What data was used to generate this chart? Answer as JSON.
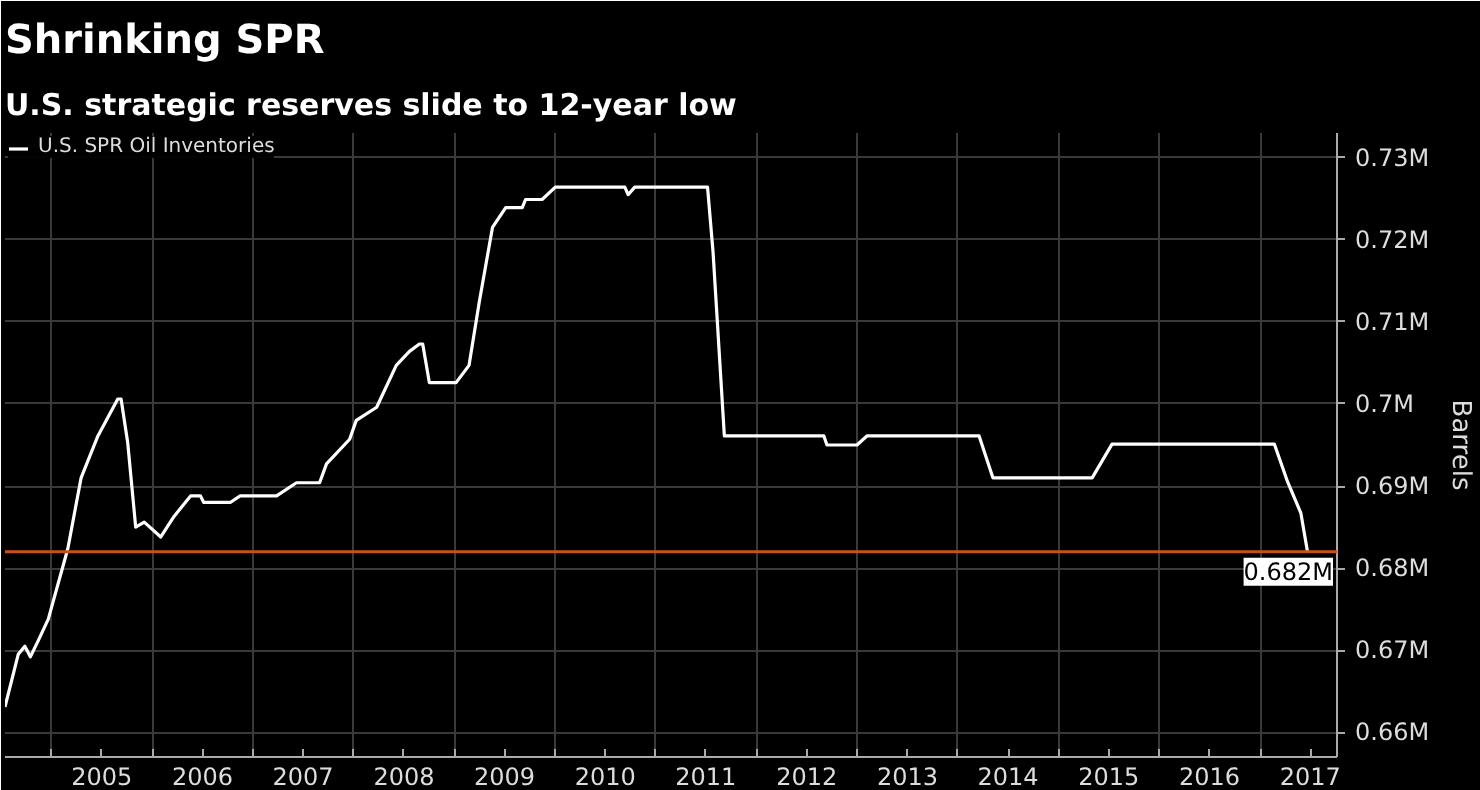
{
  "chart_data": {
    "type": "line",
    "title": "Shrinking SPR",
    "subtitle": "U.S. strategic reserves slide to 12-year low",
    "ylabel": "Barrels",
    "x": [
      "2004-07-16",
      "2004-09-02",
      "2004-09-26",
      "2004-10-16",
      "2004-11-14",
      "2004-12-20",
      "2005-03-01",
      "2005-04-18",
      "2005-06-18",
      "2005-08-29",
      "2005-09-10",
      "2005-10-04",
      "2005-11-02",
      "2005-12-03",
      "2006-02-01",
      "2006-03-21",
      "2006-05-20",
      "2006-06-25",
      "2006-07-07",
      "2006-10-11",
      "2006-11-16",
      "2007-03-28",
      "2007-06-08",
      "2007-08-31",
      "2007-09-25",
      "2007-12-18",
      "2008-01-11",
      "2008-03-25",
      "2008-06-04",
      "2008-07-22",
      "2008-08-27",
      "2008-09-08",
      "2008-10-02",
      "2009-01-07",
      "2009-02-23",
      "2009-04-01",
      "2009-05-19",
      "2009-07-06",
      "2009-09-04",
      "2009-09-16",
      "2009-11-15",
      "2010-01-02",
      "2010-09-11",
      "2010-09-23",
      "2010-10-17",
      "2011-07-08",
      "2011-07-28",
      "2011-09-07",
      "2011-11-05",
      "2012-09-02",
      "2012-09-13",
      "2012-12-31",
      "2013-02-05",
      "2014-03-19",
      "2014-05-08",
      "2015-05-03",
      "2015-07-14",
      "2017-02-22",
      "2017-04-11",
      "2017-05-29",
      "2017-06-22"
    ],
    "series": [
      {
        "name": "U.S. SPR Oil Inventories",
        "color": "#ffffff",
        "values": [
          0.6631,
          0.6695,
          0.6705,
          0.6692,
          0.6712,
          0.6738,
          0.6824,
          0.691,
          0.6961,
          0.7006,
          0.7006,
          0.6953,
          0.685,
          0.6856,
          0.6838,
          0.6863,
          0.6888,
          0.6888,
          0.688,
          0.688,
          0.6888,
          0.6888,
          0.6904,
          0.6904,
          0.6927,
          0.6957,
          0.698,
          0.6996,
          0.7047,
          0.7064,
          0.7073,
          0.7073,
          0.7026,
          0.7026,
          0.7047,
          0.7124,
          0.7215,
          0.7239,
          0.7239,
          0.7249,
          0.7249,
          0.7264,
          0.7264,
          0.7255,
          0.7264,
          0.7264,
          0.7185,
          0.6961,
          0.6961,
          0.6961,
          0.695,
          0.695,
          0.6961,
          0.6961,
          0.691,
          0.691,
          0.6951,
          0.6951,
          0.6905,
          0.6867,
          0.682
        ]
      }
    ],
    "xlim": [
      "2004-07-16",
      "2017-10-07"
    ],
    "xticks": [
      {
        "value": "2005-01-01",
        "label": null
      },
      {
        "value": "2005-07-02",
        "label": "2005"
      },
      {
        "value": "2006-01-01",
        "label": null
      },
      {
        "value": "2006-07-02",
        "label": "2006"
      },
      {
        "value": "2007-01-01",
        "label": null
      },
      {
        "value": "2007-07-02",
        "label": "2007"
      },
      {
        "value": "2008-01-01",
        "label": null
      },
      {
        "value": "2008-07-02",
        "label": "2008"
      },
      {
        "value": "2009-01-01",
        "label": null
      },
      {
        "value": "2009-07-02",
        "label": "2009"
      },
      {
        "value": "2010-01-01",
        "label": null
      },
      {
        "value": "2010-07-02",
        "label": "2010"
      },
      {
        "value": "2011-01-01",
        "label": null
      },
      {
        "value": "2011-07-02",
        "label": "2011"
      },
      {
        "value": "2012-01-01",
        "label": null
      },
      {
        "value": "2012-07-02",
        "label": "2012"
      },
      {
        "value": "2013-01-01",
        "label": null
      },
      {
        "value": "2013-07-02",
        "label": "2013"
      },
      {
        "value": "2014-01-01",
        "label": null
      },
      {
        "value": "2014-07-02",
        "label": "2014"
      },
      {
        "value": "2015-01-01",
        "label": null
      },
      {
        "value": "2015-07-02",
        "label": "2015"
      },
      {
        "value": "2016-01-01",
        "label": null
      },
      {
        "value": "2016-07-02",
        "label": "2016"
      },
      {
        "value": "2017-01-01",
        "label": null
      },
      {
        "value": "2017-07-02",
        "label": "2017"
      }
    ],
    "ylim": [
      0.657,
      0.733
    ],
    "yticks": [
      {
        "value": 0.66,
        "label": "0.66M"
      },
      {
        "value": 0.67,
        "label": "0.67M"
      },
      {
        "value": 0.68,
        "label": "0.68M"
      },
      {
        "value": 0.69,
        "label": "0.69M"
      },
      {
        "value": 0.7,
        "label": "0.7M"
      },
      {
        "value": 0.71,
        "label": "0.71M"
      },
      {
        "value": 0.72,
        "label": "0.72M"
      },
      {
        "value": 0.73,
        "label": "0.73M"
      }
    ],
    "ref_lines": [
      {
        "axis": "y",
        "value": 0.682,
        "label": "0.682M",
        "color": "#c8501e"
      }
    ],
    "grid": true,
    "legend": "top left",
    "marker": "none",
    "line_style": "solid"
  }
}
